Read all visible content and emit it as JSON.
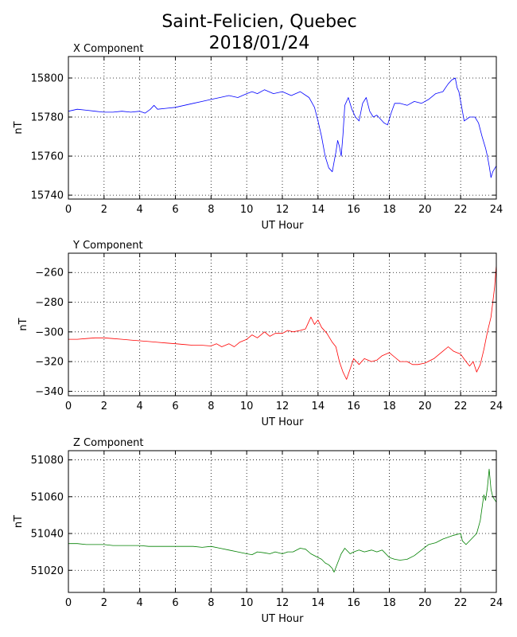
{
  "figure": {
    "title_line1": "Saint-Felicien, Quebec",
    "title_line2": "2018/01/24"
  },
  "chart_data": [
    {
      "type": "line",
      "title": "X Component",
      "xlabel": "UT Hour",
      "ylabel": "nT",
      "xlim": [
        0,
        24
      ],
      "ylim": [
        15738,
        15811
      ],
      "xticks": [
        0,
        2,
        4,
        6,
        8,
        10,
        12,
        14,
        16,
        18,
        20,
        22,
        24
      ],
      "yticks": [
        15740,
        15760,
        15780,
        15800
      ],
      "grid": true,
      "color": "#0000ff",
      "x": [
        0,
        0.5,
        1,
        1.5,
        2,
        2.5,
        3,
        3.5,
        4,
        4.3,
        4.6,
        4.8,
        5,
        5.5,
        6,
        6.5,
        7,
        7.5,
        8,
        8.5,
        9,
        9.5,
        10,
        10.3,
        10.6,
        11,
        11.5,
        12,
        12.5,
        13,
        13.5,
        13.8,
        14,
        14.2,
        14.4,
        14.6,
        14.8,
        14.9,
        15,
        15.1,
        15.2,
        15.3,
        15.4,
        15.5,
        15.7,
        15.9,
        16.1,
        16.3,
        16.5,
        16.7,
        16.9,
        17.1,
        17.3,
        17.5,
        17.7,
        17.9,
        18.1,
        18.3,
        18.6,
        19,
        19.4,
        19.8,
        20.2,
        20.6,
        21,
        21.3,
        21.5,
        21.7,
        21.8,
        21.9,
        22,
        22.2,
        22.5,
        22.8,
        23,
        23.2,
        23.4,
        23.5,
        23.6,
        23.7,
        23.8,
        24
      ],
      "y": [
        15783,
        15784,
        15783.5,
        15783,
        15782.5,
        15782.5,
        15783,
        15782.5,
        15783,
        15782,
        15784,
        15786,
        15784,
        15784.5,
        15785,
        15786,
        15787,
        15788,
        15789,
        15790,
        15791,
        15790,
        15792,
        15793,
        15792,
        15794,
        15792,
        15793,
        15791,
        15793,
        15790,
        15785,
        15778,
        15770,
        15760,
        15754,
        15752,
        15757,
        15762,
        15768,
        15765,
        15760,
        15771,
        15786,
        15790,
        15784,
        15780,
        15778,
        15787,
        15790,
        15783,
        15780,
        15781,
        15779,
        15777,
        15776,
        15782,
        15787,
        15787,
        15786,
        15788,
        15787,
        15789,
        15792,
        15793,
        15797,
        15799,
        15800,
        15795,
        15793,
        15788,
        15778,
        15780,
        15780,
        15777,
        15770,
        15764,
        15760,
        15755,
        15749,
        15752,
        15755
      ]
    },
    {
      "type": "line",
      "title": "Y Component",
      "xlabel": "UT Hour",
      "ylabel": "nT",
      "xlim": [
        0,
        24
      ],
      "ylim": [
        -343,
        -247
      ],
      "xticks": [
        0,
        2,
        4,
        6,
        8,
        10,
        12,
        14,
        16,
        18,
        20,
        22,
        24
      ],
      "yticks": [
        -340,
        -320,
        -300,
        -280,
        -260
      ],
      "grid": true,
      "color": "#ff0000",
      "x": [
        0,
        0.5,
        1,
        1.5,
        2,
        2.5,
        3,
        3.5,
        4,
        4.5,
        5,
        5.5,
        6,
        6.5,
        7,
        7.5,
        8,
        8.3,
        8.6,
        9,
        9.3,
        9.6,
        10,
        10.3,
        10.6,
        11,
        11.3,
        11.6,
        12,
        12.3,
        12.6,
        13,
        13.3,
        13.6,
        13.8,
        14,
        14.2,
        14.5,
        14.8,
        15,
        15.2,
        15.4,
        15.6,
        15.8,
        16,
        16.3,
        16.6,
        17,
        17.3,
        17.6,
        18,
        18.3,
        18.6,
        19,
        19.3,
        19.6,
        20,
        20.5,
        21,
        21.3,
        21.6,
        22,
        22.3,
        22.5,
        22.7,
        22.9,
        23.1,
        23.3,
        23.5,
        23.7,
        23.9,
        24
      ],
      "y": [
        -305,
        -305,
        -304.5,
        -304,
        -304,
        -304.5,
        -305,
        -305.5,
        -306,
        -306.5,
        -307,
        -307.5,
        -308,
        -308.5,
        -309,
        -309,
        -309.5,
        -308,
        -310,
        -308,
        -310,
        -307,
        -305,
        -302,
        -304,
        -300,
        -303,
        -301,
        -301,
        -299,
        -300,
        -299,
        -298,
        -290,
        -295,
        -292,
        -297,
        -301,
        -307,
        -310,
        -320,
        -327,
        -332,
        -325,
        -318,
        -322,
        -318,
        -320,
        -319,
        -316,
        -314,
        -317,
        -320,
        -320,
        -322,
        -322,
        -321,
        -318,
        -313,
        -310,
        -313,
        -315,
        -320,
        -323,
        -320,
        -327,
        -322,
        -312,
        -300,
        -290,
        -270,
        -255
      ]
    },
    {
      "type": "line",
      "title": "Z Component",
      "xlabel": "UT Hour",
      "ylabel": "nT",
      "xlim": [
        0,
        24
      ],
      "ylim": [
        51008,
        51085
      ],
      "xticks": [
        0,
        2,
        4,
        6,
        8,
        10,
        12,
        14,
        16,
        18,
        20,
        22,
        24
      ],
      "yticks": [
        51020,
        51040,
        51060,
        51080
      ],
      "grid": true,
      "color": "#008000",
      "x": [
        0,
        0.5,
        1,
        1.5,
        2,
        2.5,
        3,
        3.5,
        4,
        4.5,
        5,
        5.5,
        6,
        6.5,
        7,
        7.5,
        8,
        8.5,
        9,
        9.5,
        10,
        10.3,
        10.6,
        11,
        11.3,
        11.6,
        12,
        12.3,
        12.6,
        13,
        13.3,
        13.6,
        14,
        14.2,
        14.4,
        14.6,
        14.8,
        14.9,
        15.1,
        15.3,
        15.5,
        15.8,
        16,
        16.3,
        16.6,
        17,
        17.3,
        17.6,
        18,
        18.3,
        18.6,
        19,
        19.4,
        19.8,
        20.2,
        20.6,
        21,
        21.3,
        21.6,
        22,
        22.1,
        22.3,
        22.6,
        22.9,
        23.1,
        23.3,
        23.4,
        23.5,
        23.6,
        23.7,
        23.8,
        24
      ],
      "y": [
        51034.5,
        51034.5,
        51034,
        51034,
        51034,
        51033.5,
        51033.5,
        51033.5,
        51033.5,
        51033,
        51033,
        51033,
        51033,
        51033,
        51033,
        51032.5,
        51033,
        51032,
        51031,
        51030,
        51029,
        51028.5,
        51030,
        51029.5,
        51029,
        51030,
        51029,
        51030,
        51030,
        51032,
        51031.5,
        51029,
        51027,
        51026,
        51024,
        51023,
        51021,
        51019,
        51024,
        51029,
        51032,
        51029,
        51030,
        51031,
        51030,
        51031,
        51030,
        51031,
        51027,
        51026,
        51025.5,
        51026,
        51028,
        51031,
        51034,
        51035,
        51037,
        51038,
        51039,
        51040,
        51036,
        51034,
        51037,
        51040,
        51047,
        51061,
        51058,
        51065,
        51075,
        51064,
        51060,
        51057
      ]
    }
  ]
}
